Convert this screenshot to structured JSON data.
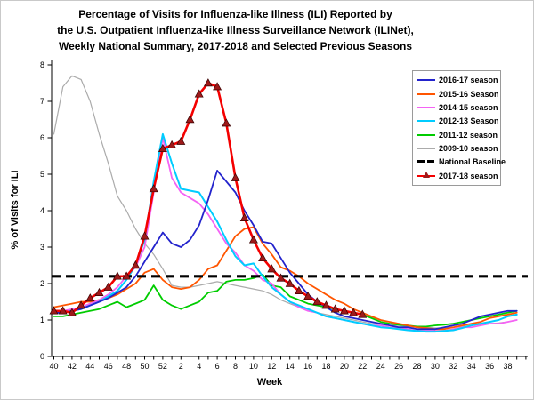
{
  "figure": {
    "title_lines": [
      "Percentage of Visits for Influenza-like Illness (ILI) Reported by",
      "the U.S. Outpatient Influenza-like Illness Surveillance Network (ILINet),",
      "Weekly National Summary, 2017-2018 and Selected Previous Seasons"
    ],
    "x_axis_label": "Week",
    "y_axis_label": "% of Visits for ILI"
  },
  "chart_data": {
    "type": "line",
    "title": "Percentage of Visits for Influenza-like Illness (ILI), Weekly National Summary, 2017-2018 and Selected Previous Seasons",
    "xlabel": "Week",
    "ylabel": "% of Visits for ILI",
    "ylim": [
      0,
      8
    ],
    "y_ticks": [
      0,
      1,
      2,
      3,
      4,
      5,
      6,
      7,
      8
    ],
    "grid": false,
    "legend_position": "upper right",
    "x_weeks": [
      40,
      41,
      42,
      43,
      44,
      45,
      46,
      47,
      48,
      49,
      50,
      51,
      52,
      1,
      2,
      3,
      4,
      5,
      6,
      7,
      8,
      9,
      10,
      11,
      12,
      13,
      14,
      15,
      16,
      17,
      18,
      19,
      20,
      21,
      22,
      23,
      24,
      25,
      26,
      27,
      28,
      29,
      30,
      31,
      32,
      33,
      34,
      35,
      36,
      37,
      38,
      39
    ],
    "x_tick_labels": [
      "40",
      "42",
      "44",
      "46",
      "48",
      "50",
      "52",
      "2",
      "4",
      "6",
      "8",
      "10",
      "12",
      "14",
      "16",
      "18",
      "20",
      "22",
      "24",
      "26",
      "28",
      "30",
      "32",
      "34",
      "36",
      "38"
    ],
    "baseline": {
      "label": "National Baseline",
      "value": 2.2,
      "style": "dashed",
      "color": "#000000"
    },
    "series": [
      {
        "key": "2009-10",
        "label": "2009-10 season",
        "color": "#ababab",
        "width": 1.2,
        "values": [
          6.1,
          7.4,
          7.7,
          7.6,
          7.0,
          6.1,
          5.3,
          4.4,
          4.0,
          3.5,
          3.1,
          2.8,
          2.4,
          1.95,
          1.9,
          1.9,
          1.95,
          2.0,
          2.05,
          2.0,
          1.95,
          1.9,
          1.85,
          1.8,
          1.7,
          1.55,
          1.45,
          1.35,
          1.3,
          1.2,
          1.15,
          1.1,
          1.05,
          1.0,
          0.95,
          0.9,
          0.88,
          0.85,
          0.85,
          0.82,
          0.8,
          0.8,
          0.78,
          0.78,
          0.8,
          0.82,
          0.85,
          0.88,
          0.9,
          0.92,
          0.95,
          1.0
        ]
      },
      {
        "key": "2011-12",
        "label": "2011-12 season",
        "color": "#00cc00",
        "width": 1.8,
        "values": [
          1.1,
          1.1,
          1.15,
          1.2,
          1.25,
          1.3,
          1.4,
          1.5,
          1.35,
          1.45,
          1.55,
          1.95,
          1.55,
          1.4,
          1.3,
          1.4,
          1.5,
          1.75,
          1.8,
          2.05,
          2.1,
          2.1,
          2.15,
          2.25,
          1.95,
          1.9,
          1.65,
          1.55,
          1.45,
          1.4,
          1.35,
          1.3,
          1.25,
          1.2,
          1.15,
          1.05,
          0.95,
          0.9,
          0.87,
          0.85,
          0.82,
          0.82,
          0.85,
          0.87,
          0.9,
          0.95,
          1.0,
          1.05,
          1.1,
          1.15,
          1.2,
          1.25
        ]
      },
      {
        "key": "2015-16",
        "label": "2015-16 Season",
        "color": "#ff5500",
        "width": 1.8,
        "values": [
          1.35,
          1.4,
          1.45,
          1.5,
          1.5,
          1.55,
          1.6,
          1.7,
          1.85,
          2.0,
          2.3,
          2.4,
          2.1,
          1.9,
          1.85,
          1.9,
          2.1,
          2.4,
          2.5,
          2.9,
          3.3,
          3.5,
          3.55,
          3.1,
          2.8,
          2.45,
          2.35,
          2.2,
          2.0,
          1.85,
          1.7,
          1.55,
          1.45,
          1.3,
          1.2,
          1.1,
          1.0,
          0.95,
          0.9,
          0.85,
          0.8,
          0.78,
          0.75,
          0.75,
          0.8,
          0.85,
          0.9,
          0.95,
          1.05,
          1.1,
          1.15,
          1.2
        ]
      },
      {
        "key": "2014-15",
        "label": "2014-15 season",
        "color": "#f463f4",
        "width": 1.8,
        "values": [
          1.2,
          1.25,
          1.3,
          1.35,
          1.45,
          1.55,
          1.7,
          1.9,
          2.2,
          2.45,
          3.0,
          4.5,
          6.0,
          4.9,
          4.5,
          4.35,
          4.2,
          3.9,
          3.5,
          3.1,
          2.85,
          2.5,
          2.35,
          2.1,
          2.0,
          1.7,
          1.5,
          1.35,
          1.25,
          1.2,
          1.1,
          1.05,
          1.0,
          0.95,
          0.9,
          0.85,
          0.85,
          0.8,
          0.8,
          0.75,
          0.7,
          0.7,
          0.7,
          0.7,
          0.75,
          0.8,
          0.8,
          0.85,
          0.9,
          0.9,
          0.95,
          1.0
        ]
      },
      {
        "key": "2012-13",
        "label": "2012-13 Season",
        "color": "#00ccff",
        "width": 2.0,
        "values": [
          1.2,
          1.2,
          1.25,
          1.3,
          1.4,
          1.5,
          1.65,
          1.8,
          2.1,
          2.5,
          3.2,
          4.8,
          6.1,
          5.3,
          4.6,
          4.55,
          4.5,
          4.1,
          3.7,
          3.2,
          2.75,
          2.5,
          2.55,
          2.2,
          1.9,
          1.7,
          1.5,
          1.4,
          1.3,
          1.2,
          1.1,
          1.05,
          1.0,
          0.95,
          0.9,
          0.85,
          0.8,
          0.78,
          0.75,
          0.72,
          0.7,
          0.68,
          0.68,
          0.7,
          0.72,
          0.78,
          0.85,
          0.9,
          0.95,
          1.0,
          1.1,
          1.15
        ]
      },
      {
        "key": "2016-17",
        "label": "2016-17 season",
        "color": "#2323cc",
        "width": 1.8,
        "values": [
          1.2,
          1.2,
          1.25,
          1.3,
          1.4,
          1.5,
          1.6,
          1.75,
          1.9,
          2.2,
          2.6,
          3.0,
          3.4,
          3.1,
          3.0,
          3.2,
          3.6,
          4.3,
          5.1,
          4.8,
          4.5,
          4.0,
          3.6,
          3.15,
          3.1,
          2.7,
          2.3,
          2.0,
          1.7,
          1.5,
          1.35,
          1.2,
          1.1,
          1.05,
          1.0,
          0.95,
          0.9,
          0.85,
          0.8,
          0.8,
          0.75,
          0.75,
          0.75,
          0.8,
          0.85,
          0.9,
          1.0,
          1.1,
          1.15,
          1.2,
          1.25,
          1.25
        ]
      },
      {
        "key": "2017-18",
        "label": "2017-18 season",
        "color": "#f40000",
        "width": 2.6,
        "marker": "triangle-up",
        "marker_color": "#9e1a1a",
        "values": [
          1.25,
          1.25,
          1.2,
          1.4,
          1.6,
          1.75,
          1.9,
          2.2,
          2.2,
          2.5,
          3.3,
          4.6,
          5.7,
          5.8,
          5.9,
          6.5,
          7.2,
          7.5,
          7.4,
          6.4,
          4.9,
          3.8,
          3.2,
          2.7,
          2.4,
          2.15,
          2.0,
          1.8,
          1.65,
          1.5,
          1.4,
          1.3,
          1.25,
          1.2,
          1.15
        ]
      }
    ]
  },
  "legend": {
    "items": [
      {
        "label": "2016-17 season",
        "swatch": "line",
        "color": "#2323cc"
      },
      {
        "label": "2015-16 Season",
        "swatch": "line",
        "color": "#ff5500"
      },
      {
        "label": "2014-15 season",
        "swatch": "line",
        "color": "#f463f4"
      },
      {
        "label": "2012-13 Season",
        "swatch": "line",
        "color": "#00ccff"
      },
      {
        "label": "2011-12 season",
        "swatch": "line",
        "color": "#00cc00"
      },
      {
        "label": "2009-10 season",
        "swatch": "line",
        "color": "#ababab"
      },
      {
        "label": "National Baseline",
        "swatch": "dashes",
        "color": "#000000"
      },
      {
        "label": "2017-18 season",
        "swatch": "line-triangle",
        "color": "#f40000"
      }
    ]
  }
}
